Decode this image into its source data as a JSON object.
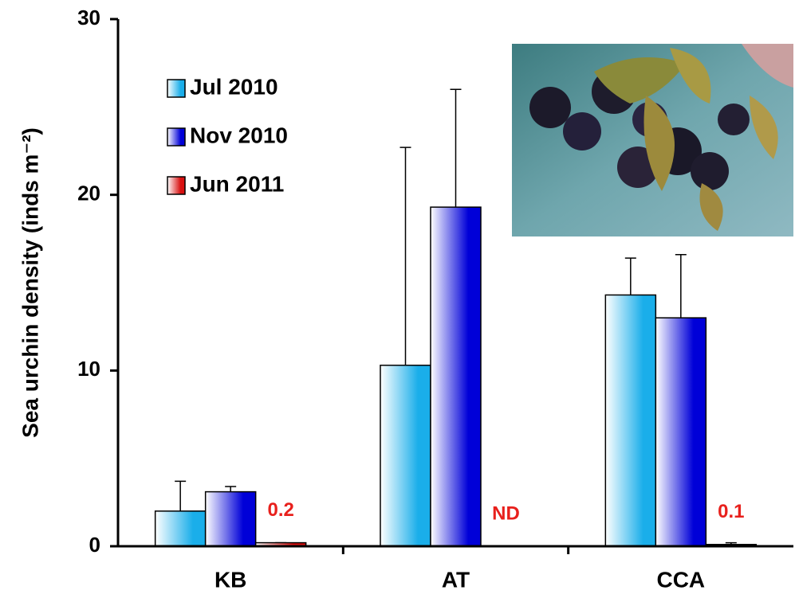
{
  "chart_data": {
    "type": "bar",
    "y_label": "Sea urchin density  (inds m⁻²)",
    "categories": [
      "KB",
      "AT",
      "CCA"
    ],
    "series": [
      {
        "name": "Jul 2010",
        "color": "#1aaeea",
        "values": [
          2.0,
          10.3,
          14.3
        ],
        "errors": [
          1.7,
          12.4,
          2.1
        ]
      },
      {
        "name": "Nov 2010",
        "color": "#0000d8",
        "values": [
          3.1,
          19.3,
          13.0
        ],
        "errors": [
          0.3,
          6.7,
          3.6
        ]
      },
      {
        "name": "Jun 2011",
        "color": "#d81010",
        "values": [
          0.2,
          null,
          0.1
        ],
        "errors": [
          0.0,
          null,
          0.1
        ],
        "value_labels": [
          "0.2",
          "ND",
          "0.1"
        ],
        "value_label_color": "#e8201c"
      }
    ],
    "ylim": [
      0,
      30
    ],
    "yticks": [
      0,
      10,
      20,
      30
    ],
    "legend": "upper left"
  }
}
